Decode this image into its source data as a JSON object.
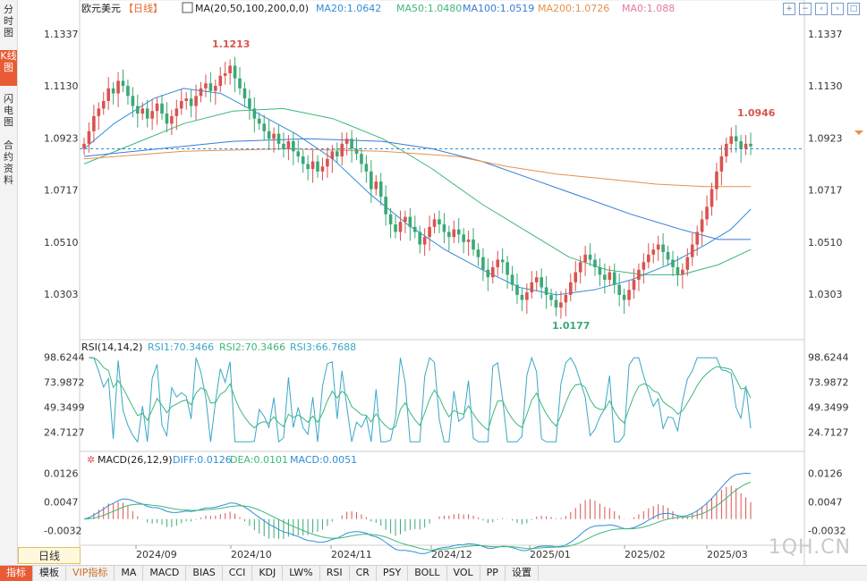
{
  "sidebar": {
    "tabs": [
      {
        "label": "分时图"
      },
      {
        "label": "K线图"
      },
      {
        "label": "闪电图"
      },
      {
        "label": "合约资料"
      }
    ]
  },
  "header": {
    "symbol": "欧元美元",
    "period_tag": "【日线】",
    "ma_legend": "MA(20,50,100,200,0,0)",
    "ma20": "MA20:1.0642",
    "ma50": "MA50:1.0480",
    "ma100": "MA100:1.0519",
    "ma200": "MA200:1.0726",
    "ma0": "MA0:1.088"
  },
  "colors": {
    "up": "#d9534f",
    "down": "#3aa876",
    "ma20": "#2f8fd8",
    "ma50": "#3cb878",
    "ma100": "#3a7bd5",
    "ma200": "#e8904a",
    "rsi": "#3aa7c7",
    "macd_dea": "#3cb878",
    "macd_diff": "#2f8fd8"
  },
  "price_panel": {
    "y_ticks": [
      "1.1337",
      "1.1130",
      "1.0923",
      "1.0717",
      "1.0510",
      "1.0303"
    ],
    "high_label": "1.1213",
    "low_label": "1.0177",
    "recent_high_label": "1.0946"
  },
  "rsi_panel": {
    "legend": "RSI(14,14,2)",
    "rsi1": "RSI1:70.3466",
    "rsi2": "RSI2:70.3466",
    "rsi3": "RSI3:66.7688",
    "y_ticks": [
      "98.6244",
      "73.9872",
      "49.3499",
      "24.7127"
    ]
  },
  "macd_panel": {
    "legend": "MACD(26,12,9)",
    "diff": "DIFF:0.0126",
    "dea": "DEA:0.0101",
    "macd": "MACD:0.0051",
    "y_ticks": [
      "0.0126",
      "0.0047",
      "-0.0032"
    ]
  },
  "x_axis": {
    "labels": [
      "2024/09",
      "2024/10",
      "2024/11",
      "2024/12",
      "2025/01",
      "2025/02",
      "2025/03"
    ]
  },
  "period_button": "日线",
  "watermark": "1QH.CN",
  "toolbar": {
    "items": [
      "指标",
      "模板",
      "VIP指标",
      "MA",
      "MACD",
      "BIAS",
      "CCI",
      "KDJ",
      "LW%",
      "RSI",
      "CR",
      "PSY",
      "BOLL",
      "VOL",
      "PP",
      "设置"
    ]
  },
  "chart_data": {
    "type": "candlestick",
    "price_range": [
      1.014,
      1.14
    ],
    "ma_lines": [
      {
        "name": "MA20",
        "points": [
          [
            0,
            1.088
          ],
          [
            12,
            1.098
          ],
          [
            28,
            1.108
          ],
          [
            40,
            1.112
          ],
          [
            55,
            1.11
          ],
          [
            70,
            1.102
          ],
          [
            85,
            1.094
          ],
          [
            100,
            1.084
          ],
          [
            115,
            1.07
          ],
          [
            130,
            1.058
          ],
          [
            145,
            1.048
          ],
          [
            160,
            1.04
          ],
          [
            175,
            1.033
          ],
          [
            190,
            1.03
          ],
          [
            205,
            1.032
          ],
          [
            220,
            1.036
          ],
          [
            235,
            1.042
          ],
          [
            250,
            1.05
          ],
          [
            260,
            1.056
          ],
          [
            268,
            1.064
          ]
        ]
      },
      {
        "name": "MA50",
        "points": [
          [
            0,
            1.082
          ],
          [
            20,
            1.09
          ],
          [
            40,
            1.098
          ],
          [
            60,
            1.103
          ],
          [
            80,
            1.104
          ],
          [
            100,
            1.1
          ],
          [
            120,
            1.092
          ],
          [
            140,
            1.08
          ],
          [
            160,
            1.066
          ],
          [
            180,
            1.054
          ],
          [
            195,
            1.045
          ],
          [
            210,
            1.04
          ],
          [
            225,
            1.038
          ],
          [
            240,
            1.038
          ],
          [
            255,
            1.042
          ],
          [
            268,
            1.048
          ]
        ]
      },
      {
        "name": "MA100",
        "points": [
          [
            0,
            1.085
          ],
          [
            30,
            1.088
          ],
          [
            60,
            1.091
          ],
          [
            90,
            1.092
          ],
          [
            120,
            1.091
          ],
          [
            140,
            1.088
          ],
          [
            160,
            1.083
          ],
          [
            180,
            1.076
          ],
          [
            200,
            1.069
          ],
          [
            220,
            1.062
          ],
          [
            240,
            1.056
          ],
          [
            255,
            1.052
          ],
          [
            268,
            1.052
          ]
        ]
      },
      {
        "name": "MA200",
        "points": [
          [
            0,
            1.084
          ],
          [
            40,
            1.087
          ],
          [
            80,
            1.088
          ],
          [
            120,
            1.087
          ],
          [
            150,
            1.085
          ],
          [
            170,
            1.081
          ],
          [
            190,
            1.078
          ],
          [
            210,
            1.076
          ],
          [
            230,
            1.074
          ],
          [
            250,
            1.073
          ],
          [
            268,
            1.073
          ]
        ]
      }
    ],
    "ma0_level": 1.088,
    "candles_close": [
      1.09,
      1.095,
      1.101,
      1.104,
      1.107,
      1.112,
      1.11,
      1.115,
      1.113,
      1.109,
      1.105,
      1.102,
      1.104,
      1.1,
      1.103,
      1.106,
      1.102,
      1.098,
      1.101,
      1.104,
      1.107,
      1.108,
      1.105,
      1.109,
      1.112,
      1.114,
      1.111,
      1.113,
      1.117,
      1.118,
      1.121,
      1.116,
      1.112,
      1.108,
      1.104,
      1.1,
      1.098,
      1.095,
      1.092,
      1.094,
      1.09,
      1.088,
      1.091,
      1.087,
      1.085,
      1.082,
      1.08,
      1.083,
      1.079,
      1.081,
      1.084,
      1.087,
      1.085,
      1.09,
      1.092,
      1.088,
      1.086,
      1.082,
      1.079,
      1.072,
      1.075,
      1.069,
      1.062,
      1.058,
      1.055,
      1.059,
      1.061,
      1.057,
      1.055,
      1.05,
      1.053,
      1.057,
      1.06,
      1.058,
      1.055,
      1.053,
      1.056,
      1.054,
      1.051,
      1.052,
      1.048,
      1.045,
      1.04,
      1.037,
      1.041,
      1.044,
      1.043,
      1.038,
      1.034,
      1.03,
      1.028,
      1.031,
      1.035,
      1.037,
      1.033,
      1.03,
      1.028,
      1.025,
      1.027,
      1.03,
      1.035,
      1.039,
      1.043,
      1.046,
      1.044,
      1.041,
      1.038,
      1.036,
      1.039,
      1.034,
      1.03,
      1.028,
      1.032,
      1.036,
      1.04,
      1.043,
      1.046,
      1.048,
      1.05,
      1.047,
      1.044,
      1.041,
      1.038,
      1.04,
      1.045,
      1.05,
      1.055,
      1.06,
      1.065,
      1.072,
      1.079,
      1.085,
      1.09,
      1.093,
      1.091,
      1.088,
      1.09,
      1.089
    ]
  }
}
